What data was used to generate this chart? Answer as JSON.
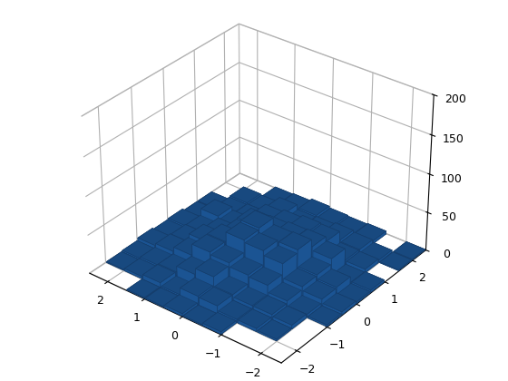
{
  "bar_color": "#1f5fa6",
  "bar_edge_color": "#153d6b",
  "zlim": [
    0,
    200
  ],
  "num_bins": 10,
  "x_range": [
    -2.5,
    2.5
  ],
  "y_range": [
    -2.5,
    2.5
  ],
  "zticks": [
    0,
    50,
    100,
    150,
    200
  ],
  "xticks": [
    -2,
    -1,
    0,
    1,
    2
  ],
  "yticks": [
    -2,
    -1,
    0,
    1,
    2
  ],
  "seed": 42,
  "n_samples": 1000,
  "elev": 32,
  "azim": -52,
  "figsize": [
    5.6,
    4.2
  ],
  "dpi": 100
}
